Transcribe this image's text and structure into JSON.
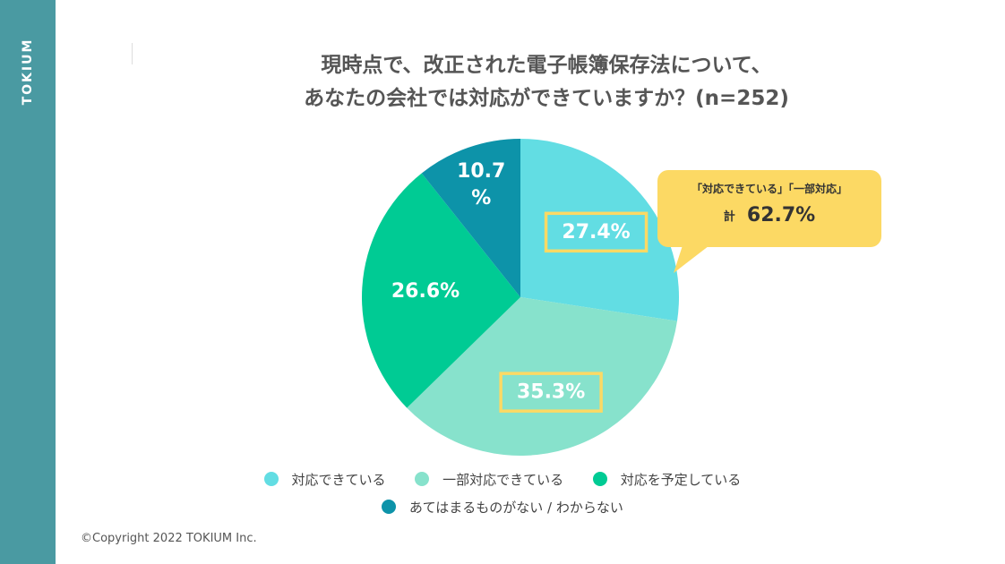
{
  "brand": "TOKIUM",
  "copyright": "©Copyright 2022 TOKIUM Inc.",
  "chart_data": {
    "type": "pie",
    "title": [
      "現時点で、改正された電子帳簿保存法について、",
      "あなたの会社では対応ができていますか？(n=252)"
    ],
    "start_angle_deg": 0,
    "direction": "clockwise",
    "slices": [
      {
        "name": "対応できている",
        "value": 27.4,
        "label": "27.4%",
        "color": "#62dde3",
        "highlight": true
      },
      {
        "name": "一部対応できている",
        "value": 35.3,
        "label": "35.3%",
        "color": "#87e2cc",
        "highlight": true
      },
      {
        "name": "対応を予定している",
        "value": 26.6,
        "label": "26.6%",
        "color": "#00cb94",
        "highlight": false
      },
      {
        "name": "あてはまるものがない / わからない",
        "value": 10.7,
        "label": "10.7%",
        "label_lines": [
          "10.7",
          "%"
        ],
        "color": "#0d93a9",
        "highlight": false
      }
    ],
    "highlight_box_color": "#fcd964",
    "legend": {
      "rows": [
        [
          "対応できている",
          "一部対応できている",
          "対応を予定している"
        ],
        [
          "あてはまるものがない / わからない"
        ]
      ]
    },
    "callout": {
      "line1": "「対応できている」「一部対応」",
      "prefix": "計",
      "value": "62.7%"
    }
  }
}
